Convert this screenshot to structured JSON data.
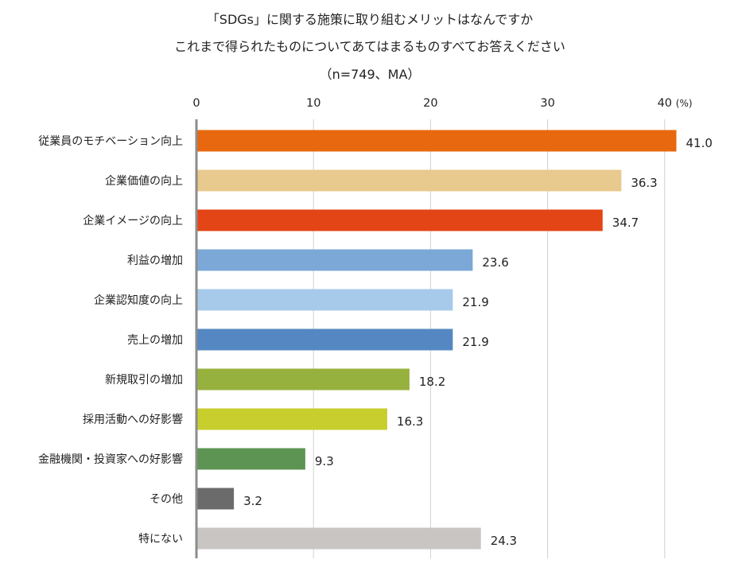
{
  "chart_data": {
    "type": "bar",
    "orientation": "horizontal",
    "title_lines": [
      "「SDGs」に関する施策に取り組むメリットはなんですか",
      "これまで得られたものについてあてはまるものすべてお答えください",
      "（n=749、MA）"
    ],
    "unit": "(%)",
    "xlim": [
      0,
      40
    ],
    "ticks": [
      0,
      10,
      20,
      30,
      40
    ],
    "grid": true,
    "categories": [
      "従業員のモチベーション向上",
      "企業価値の向上",
      "企業イメージの向上",
      "利益の増加",
      "企業認知度の向上",
      "売上の増加",
      "新規取引の増加",
      "採用活動への好影響",
      "金融機関・投資家への好影響",
      "その他",
      "特にない"
    ],
    "values": [
      41.0,
      36.3,
      34.7,
      23.6,
      21.9,
      21.9,
      18.2,
      16.3,
      9.3,
      3.2,
      24.3
    ],
    "value_labels": [
      "41.0",
      "36.3",
      "34.7",
      "23.6",
      "21.9",
      "21.9",
      "18.2",
      "16.3",
      "9.3",
      "3.2",
      "24.3"
    ],
    "colors": [
      "#E8680F",
      "#E8C98E",
      "#E34516",
      "#7BA8D6",
      "#A7CAEA",
      "#5588C2",
      "#97B13E",
      "#C7CE2D",
      "#5D9453",
      "#6B6B6B",
      "#C9C5C3"
    ]
  }
}
